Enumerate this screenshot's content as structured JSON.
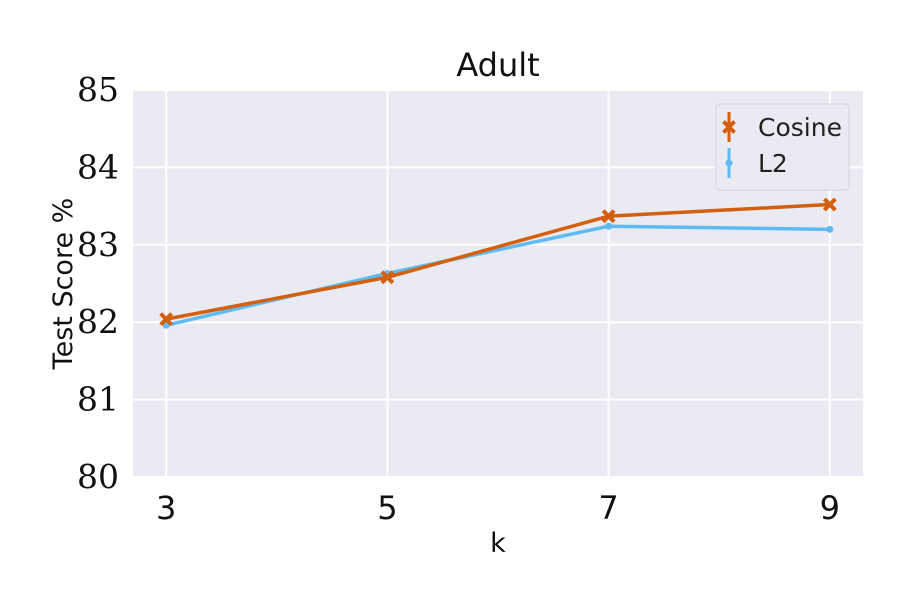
{
  "chart_data": {
    "type": "line",
    "title": "Adult",
    "xlabel": "k",
    "ylabel": "Test Score %",
    "x": [
      3,
      5,
      7,
      9
    ],
    "xlim": [
      2.7,
      9.3
    ],
    "ylim": [
      80,
      85
    ],
    "yticks": [
      80,
      81,
      82,
      83,
      84,
      85
    ],
    "xticks": [
      3,
      5,
      7,
      9
    ],
    "grid": true,
    "legend_position": "top-right",
    "series": [
      {
        "name": "Cosine",
        "values": [
          82.04,
          82.58,
          83.37,
          83.52
        ],
        "color": "#d35f0f",
        "marker": "x"
      },
      {
        "name": "L2",
        "values": [
          81.96,
          82.63,
          83.24,
          83.2
        ],
        "color": "#5ebcf2",
        "marker": "dot"
      }
    ],
    "background_color": "#eaeaf2"
  }
}
